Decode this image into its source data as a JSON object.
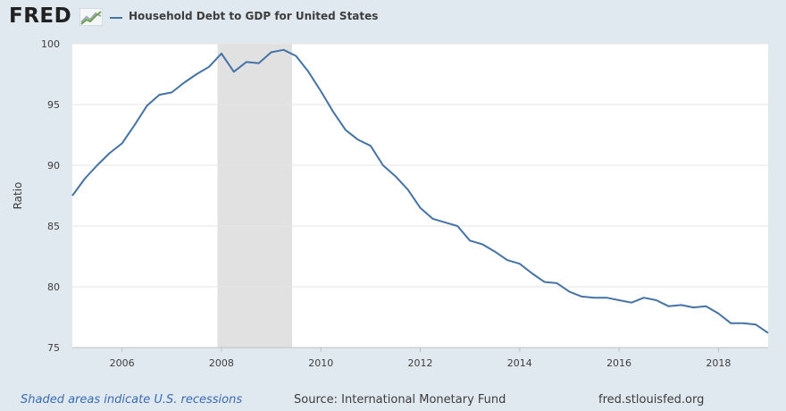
{
  "header": {
    "logo_text": "FRED",
    "logo_icon": "trend-chart-icon"
  },
  "colors": {
    "background": "#e1e9f0",
    "plot_background": "#ffffff",
    "series_line": "#4572a7",
    "recession_shade": "#e1e1e1",
    "footer_note": "#3a6ab0"
  },
  "chart_data": {
    "type": "line",
    "title": "",
    "xlabel": "",
    "ylabel": "Ratio",
    "xlim": [
      2005.0,
      2019.0
    ],
    "ylim": [
      75,
      100
    ],
    "yticks": [
      75,
      80,
      85,
      90,
      95,
      100
    ],
    "xticks": [
      2006,
      2008,
      2010,
      2012,
      2014,
      2016,
      2018
    ],
    "grid": "horizontal",
    "legend_position": "top-left",
    "recessions": [
      [
        2007.92,
        2009.42
      ]
    ],
    "series": [
      {
        "name": "Household Debt to GDP for United States",
        "x": [
          2005.0,
          2005.25,
          2005.5,
          2005.75,
          2006.0,
          2006.25,
          2006.5,
          2006.75,
          2007.0,
          2007.25,
          2007.5,
          2007.75,
          2008.0,
          2008.25,
          2008.5,
          2008.75,
          2009.0,
          2009.25,
          2009.5,
          2009.75,
          2010.0,
          2010.25,
          2010.5,
          2010.75,
          2011.0,
          2011.25,
          2011.5,
          2011.75,
          2012.0,
          2012.25,
          2012.5,
          2012.75,
          2013.0,
          2013.25,
          2013.5,
          2013.75,
          2014.0,
          2014.25,
          2014.5,
          2014.75,
          2015.0,
          2015.25,
          2015.5,
          2015.75,
          2016.0,
          2016.25,
          2016.5,
          2016.75,
          2017.0,
          2017.25,
          2017.5,
          2017.75,
          2018.0,
          2018.25,
          2018.5,
          2018.75,
          2019.0
        ],
        "values": [
          87.5,
          88.9,
          90.0,
          91.0,
          91.8,
          93.3,
          94.9,
          95.8,
          96.0,
          96.8,
          97.5,
          98.1,
          99.2,
          97.7,
          98.5,
          98.4,
          99.3,
          99.5,
          99.0,
          97.7,
          96.1,
          94.4,
          92.9,
          92.1,
          91.6,
          90.0,
          89.1,
          88.0,
          86.5,
          85.6,
          85.3,
          85.0,
          83.8,
          83.5,
          82.9,
          82.2,
          81.9,
          81.1,
          80.4,
          80.3,
          79.6,
          79.2,
          79.1,
          79.1,
          78.9,
          78.7,
          79.1,
          78.9,
          78.4,
          78.5,
          78.3,
          78.4,
          77.8,
          77.0,
          77.0,
          76.9,
          76.2
        ]
      }
    ]
  },
  "footer": {
    "note": "Shaded areas indicate U.S. recessions",
    "source": "Source: International Monetary Fund",
    "site": "fred.stlouisfed.org"
  }
}
